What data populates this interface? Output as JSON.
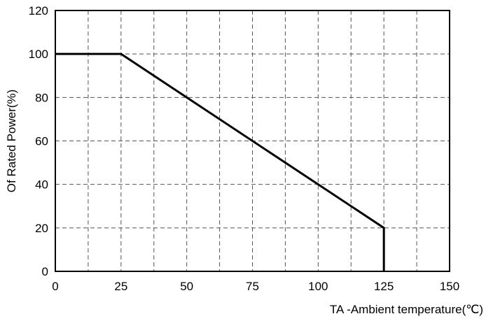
{
  "chart_data": {
    "type": "line",
    "title": "",
    "xlabel": "TA -Ambient temperature(℃)",
    "ylabel": "Of Rated Power(%)",
    "xlim": [
      0,
      150
    ],
    "ylim": [
      0,
      120
    ],
    "x_ticks": [
      0,
      25,
      50,
      75,
      100,
      125,
      150
    ],
    "y_ticks": [
      0,
      20,
      40,
      60,
      80,
      100,
      120
    ],
    "x_tick_labels": [
      "0",
      "25",
      "50",
      "75",
      "100",
      "125",
      "150"
    ],
    "y_tick_labels": [
      "0",
      "20",
      "40",
      "60",
      "80",
      "100",
      "120"
    ],
    "x_minor_grid_step": 12.5,
    "grid": true,
    "grid_style": "dashed",
    "legend": "none",
    "line_color": "#000000",
    "series": [
      {
        "x": [
          0,
          25,
          125,
          125
        ],
        "y": [
          100,
          100,
          20,
          0
        ]
      }
    ]
  }
}
